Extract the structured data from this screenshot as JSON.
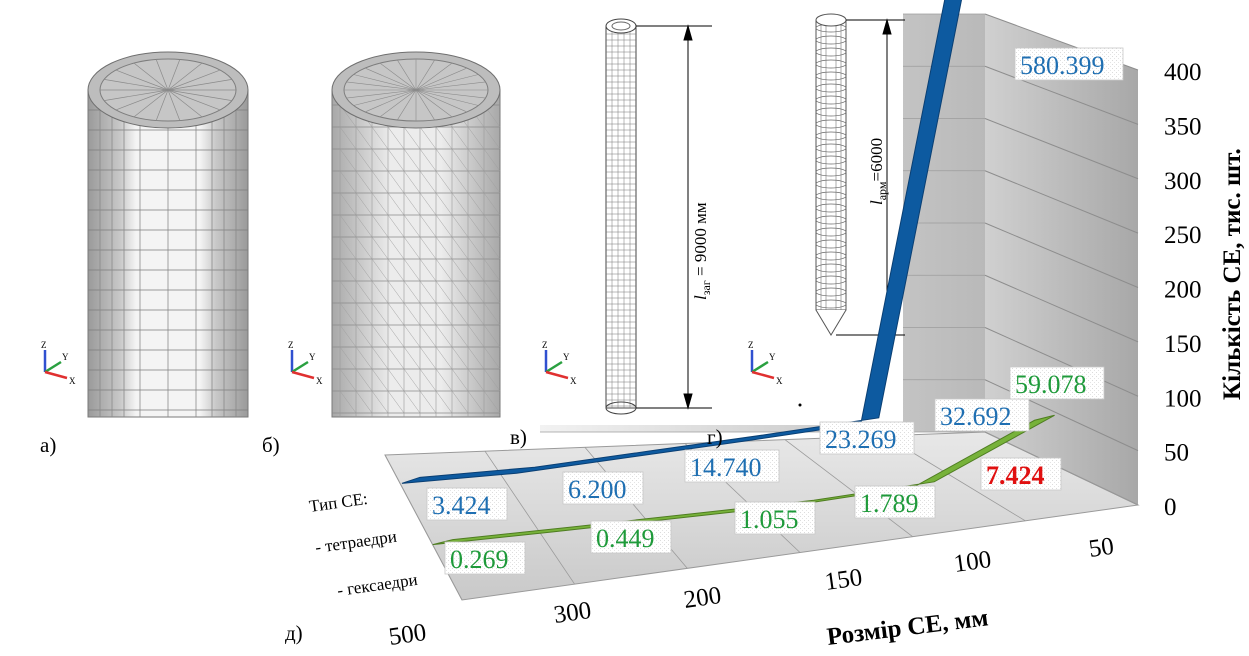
{
  "panels": {
    "a": "а)",
    "b": "б)",
    "v": "в)",
    "g": "г)",
    "d": "д)"
  },
  "dims": {
    "zag": "l",
    "zag_sub": "заг",
    "zag_value": " = 9000 мм",
    "arm": "l",
    "arm_sub": "арм",
    "arm_value": "=6000"
  },
  "axis_triad": {
    "x": "X",
    "y": "Y",
    "z": "Z"
  },
  "legend": {
    "title": "Тип СЕ:",
    "tetra": "- тетраедри",
    "hexa": "- гексаедри"
  },
  "colors": {
    "tetra": "#0d5aa0",
    "hexa": "#77b23a",
    "tetra_label": "#1f6fb2",
    "hexa_label": "#1e9a3a",
    "highlight": "#e01010"
  },
  "chart_data": {
    "type": "3d-line",
    "title": "",
    "xlabel": "Розмір СЕ, мм",
    "ylabel": "Кількість СЕ, тис. шт.",
    "categories": [
      "500",
      "300",
      "200",
      "150",
      "100",
      "50"
    ],
    "ylim": [
      0,
      400
    ],
    "yticks": [
      "0",
      "50",
      "100",
      "150",
      "200",
      "250",
      "300",
      "350",
      "400"
    ],
    "series": [
      {
        "name": "- тетраедри",
        "values": [
          3.424,
          6.2,
          14.74,
          23.269,
          32.692,
          580.399
        ],
        "labels": [
          "3.424",
          "6.200",
          "14.740",
          "23.269",
          "32.692",
          "580.399"
        ]
      },
      {
        "name": "- гексаедри",
        "values": [
          0.269,
          0.449,
          1.055,
          1.789,
          7.424,
          59.078
        ],
        "labels": [
          "0.269",
          "0.449",
          "1.055",
          "1.789",
          "7.424",
          "59.078"
        ]
      }
    ],
    "highlight": "7.424",
    "grid": true
  }
}
